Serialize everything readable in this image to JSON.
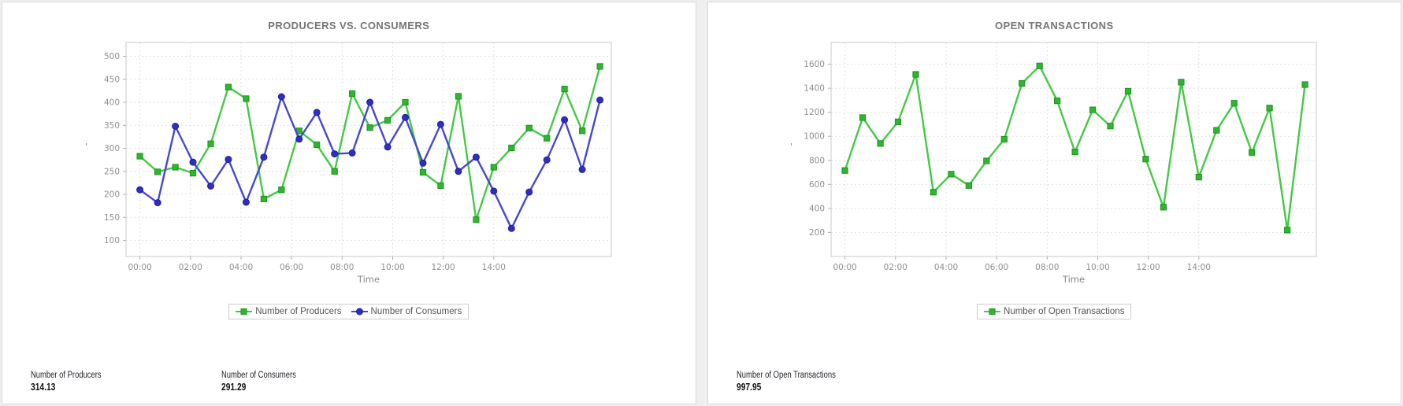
{
  "page": {
    "background": "#efefef",
    "panel_background": "#ffffff",
    "panel_border": "#dadada"
  },
  "panels": [
    {
      "title": "PRODUCERS VS. CONSUMERS",
      "stats": [
        {
          "label": "Number of Producers",
          "value": "314.13"
        },
        {
          "label": "Number of Consumers",
          "value": "291.29"
        }
      ]
    },
    {
      "title": "OPEN TRANSACTIONS",
      "stats": [
        {
          "label": "Number of Open Transactions",
          "value": "997.95"
        }
      ]
    }
  ],
  "chart_data": [
    {
      "type": "line",
      "title": "PRODUCERS VS. CONSUMERS",
      "xlabel": "Time",
      "ylabel": "'",
      "grid": true,
      "legend_position": "bottom",
      "x_tick_labels": [
        "00:00",
        "02:00",
        "04:00",
        "06:00",
        "08:00",
        "10:00",
        "12:00",
        "14:00"
      ],
      "x_tick_hours": [
        0,
        2,
        4,
        6,
        8,
        10,
        12,
        14
      ],
      "x_domain_hours": [
        -0.55,
        18.65
      ],
      "points_start_hour": 0,
      "points_interval_hours": 0.7,
      "ylim": [
        65,
        530
      ],
      "y_ticks": [
        100,
        150,
        200,
        250,
        300,
        350,
        400,
        450,
        500
      ],
      "series": [
        {
          "name": "Number of Producers",
          "marker": "square",
          "line_color": "#45c945",
          "marker_fill": "#2fb52f",
          "marker_stroke": "#1e941e",
          "values": [
            283,
            249,
            259,
            246,
            310,
            433,
            408,
            190,
            210,
            338,
            308,
            250,
            419,
            345,
            361,
            400,
            248,
            219,
            413,
            145,
            259,
            301,
            344,
            322,
            429,
            338,
            478
          ]
        },
        {
          "name": "Number of Consumers",
          "marker": "circle",
          "line_color": "#4747d1",
          "marker_fill": "#2e2ec0",
          "marker_stroke": "#1f1fa0",
          "values": [
            210,
            182,
            348,
            270,
            218,
            276,
            183,
            281,
            412,
            320,
            378,
            288,
            290,
            400,
            303,
            367,
            268,
            352,
            250,
            281,
            207,
            126,
            205,
            275,
            362,
            254,
            405
          ]
        }
      ]
    },
    {
      "type": "line",
      "title": "OPEN TRANSACTIONS",
      "xlabel": "Time",
      "ylabel": "'",
      "grid": true,
      "legend_position": "bottom",
      "x_tick_labels": [
        "00:00",
        "02:00",
        "04:00",
        "06:00",
        "08:00",
        "10:00",
        "12:00",
        "14:00"
      ],
      "x_tick_hours": [
        0,
        2,
        4,
        6,
        8,
        10,
        12,
        14
      ],
      "x_domain_hours": [
        -0.55,
        18.65
      ],
      "points_start_hour": 0,
      "points_interval_hours": 0.7,
      "ylim": [
        0,
        1780
      ],
      "y_ticks": [
        200,
        400,
        600,
        800,
        1000,
        1200,
        1400,
        1600
      ],
      "series": [
        {
          "name": "Number of Open Transactions",
          "marker": "square",
          "line_color": "#45c945",
          "marker_fill": "#2fb52f",
          "marker_stroke": "#1e941e",
          "values": [
            715,
            1155,
            940,
            1120,
            1515,
            535,
            685,
            590,
            795,
            975,
            1440,
            1585,
            1295,
            870,
            1220,
            1085,
            1375,
            810,
            410,
            1450,
            660,
            1050,
            1275,
            865,
            1235,
            220,
            1430
          ]
        }
      ]
    }
  ]
}
